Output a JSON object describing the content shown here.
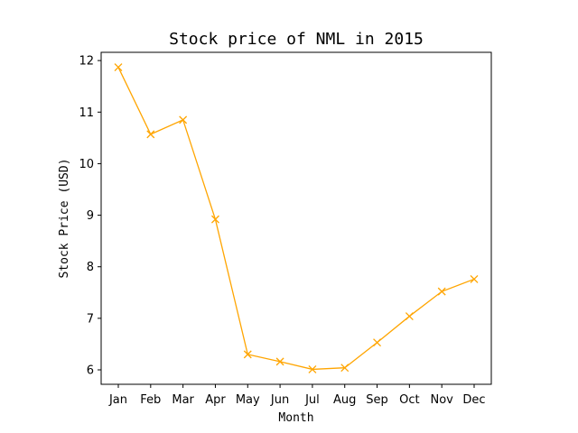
{
  "chart_data": {
    "type": "line",
    "title": "Stock price of NML in 2015",
    "xlabel": "Month",
    "ylabel": "Stock Price (USD)",
    "categories": [
      "Jan",
      "Feb",
      "Mar",
      "Apr",
      "May",
      "Jun",
      "Jul",
      "Aug",
      "Sep",
      "Oct",
      "Nov",
      "Dec"
    ],
    "series": [
      {
        "values": [
          11.87,
          10.57,
          10.85,
          8.92,
          6.3,
          6.16,
          6.01,
          6.04,
          6.53,
          7.04,
          7.52,
          7.76
        ]
      }
    ],
    "yticks": [
      6,
      7,
      8,
      9,
      10,
      11,
      12
    ],
    "ylim": [
      5.72,
      12.16
    ],
    "marker": "x",
    "color": "#FFA500",
    "grid": false,
    "legend": "none"
  }
}
